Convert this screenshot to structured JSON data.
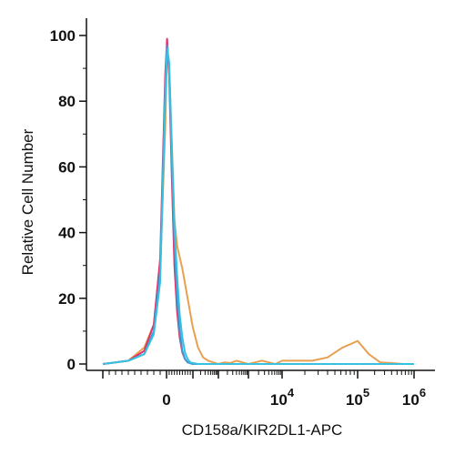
{
  "chart_data": {
    "type": "line",
    "title": "",
    "xlabel": "CD158a/KIR2DL1-APC",
    "ylabel": "Relative Cell Number",
    "x_scale": "biexponential",
    "xlim": [
      -1.0,
      6.0
    ],
    "ylim": [
      0,
      100
    ],
    "y_ticks": [
      0,
      20,
      40,
      60,
      80,
      100
    ],
    "x_tick_labels": [
      {
        "value": 0,
        "label": "0"
      },
      {
        "value": 4,
        "base": "10",
        "exp": "4"
      },
      {
        "value": 5,
        "base": "10",
        "exp": "5"
      },
      {
        "value": 6,
        "base": "10",
        "exp": "6"
      }
    ],
    "grid": false,
    "legend": "none",
    "series": [
      {
        "color": "#e8a050",
        "x": [
          -1.0,
          -0.6,
          -0.35,
          -0.2,
          -0.1,
          -0.02,
          0.02,
          0.1,
          0.2,
          0.3,
          0.4,
          0.6,
          0.8,
          1.0,
          1.2,
          1.4,
          1.6,
          1.8,
          2.0,
          2.2,
          2.4,
          2.6,
          2.8,
          3.0,
          3.2,
          3.4,
          3.6,
          3.8,
          4.0,
          4.2,
          4.4,
          4.6,
          4.8,
          5.0,
          5.2,
          5.4,
          5.6,
          5.8,
          6.0
        ],
        "values": [
          0,
          1,
          5,
          12,
          28,
          72,
          95,
          90,
          68,
          44,
          36,
          29,
          20,
          11,
          5,
          2,
          1,
          0.5,
          0,
          0.5,
          0.3,
          1,
          0.5,
          0,
          0.5,
          1,
          0.5,
          0,
          1,
          1,
          1,
          2,
          5,
          7,
          3,
          0.5,
          0.3,
          0,
          0
        ]
      },
      {
        "color": "#e0306a",
        "x": [
          -1.0,
          -0.6,
          -0.35,
          -0.2,
          -0.1,
          -0.02,
          0.02,
          0.1,
          0.2,
          0.3,
          0.4,
          0.5,
          0.6,
          0.7,
          0.8,
          1.0,
          1.2,
          1.5,
          2.0,
          3.0,
          4.0,
          5.0,
          6.0
        ],
        "values": [
          0,
          1,
          4,
          12,
          32,
          88,
          99,
          88,
          57,
          30,
          16,
          8,
          3.5,
          1.5,
          0.5,
          0,
          0,
          0,
          0,
          0,
          0,
          0,
          0
        ]
      },
      {
        "color": "#3a9ad8",
        "x": [
          -1.0,
          -0.6,
          -0.35,
          -0.2,
          -0.1,
          -0.02,
          0.02,
          0.1,
          0.2,
          0.3,
          0.4,
          0.5,
          0.6,
          0.7,
          0.8,
          1.0,
          1.2,
          1.5,
          2.0,
          3.0,
          4.0,
          5.0,
          6.0
        ],
        "values": [
          0,
          1,
          3,
          10,
          28,
          84,
          97,
          90,
          62,
          38,
          20,
          10,
          4,
          1.5,
          0.5,
          0,
          0,
          0,
          0,
          0,
          0,
          0,
          0
        ]
      },
      {
        "color": "#38c0e0",
        "x": [
          -1.0,
          -0.6,
          -0.35,
          -0.2,
          -0.1,
          -0.02,
          0.02,
          0.1,
          0.2,
          0.3,
          0.4,
          0.5,
          0.6,
          0.7,
          0.8,
          0.9,
          1.0,
          1.2,
          1.5,
          2.0,
          3.0,
          4.0,
          5.0,
          6.0
        ],
        "values": [
          0,
          1,
          3,
          9,
          25,
          80,
          96,
          92,
          66,
          42,
          27,
          15,
          8,
          3.5,
          1.5,
          0.5,
          0.3,
          0,
          0,
          0,
          0,
          0,
          0,
          0
        ]
      }
    ]
  }
}
